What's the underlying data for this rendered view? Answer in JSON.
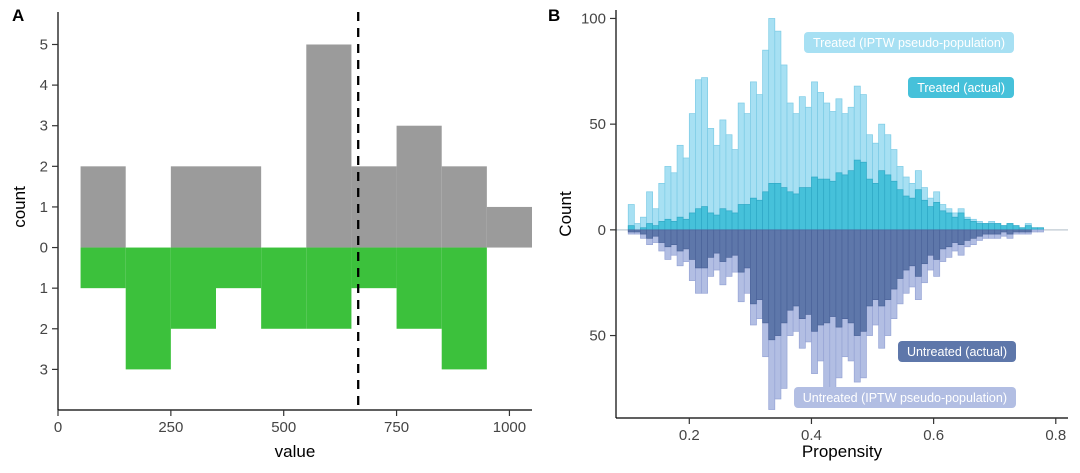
{
  "figure": {
    "background": "#ffffff",
    "panel_labels": [
      "A",
      "B"
    ]
  },
  "chart_data": [
    {
      "id": "A",
      "panel_label": "A",
      "type": "bar",
      "subtype": "mirror_histogram",
      "title": "",
      "xlabel": "value",
      "ylabel": "count",
      "xlim": [
        0,
        1050
      ],
      "ylim": [
        -4,
        5.8
      ],
      "x_tick_values": [
        0,
        250,
        500,
        750,
        1000
      ],
      "x_tick_labels": [
        "0",
        "250",
        "500",
        "750",
        "1000"
      ],
      "y_tick_values": [
        5,
        4,
        3,
        2,
        1,
        0,
        -1,
        -2,
        -3
      ],
      "y_tick_labels": [
        "5",
        "4",
        "3",
        "2",
        "1",
        "0",
        "1",
        "2",
        "3"
      ],
      "bin_start": 50,
      "bin_width": 100,
      "grid": false,
      "series": [
        {
          "name": "upper_histogram",
          "direction": "up",
          "fill": "#9b9b9b",
          "values": [
            2,
            0,
            2,
            2,
            0,
            5,
            2,
            3,
            2,
            1
          ]
        },
        {
          "name": "lower_histogram",
          "direction": "down",
          "fill": "#3cc13c",
          "values": [
            1,
            3,
            2,
            1,
            2,
            2,
            1,
            2,
            3,
            0
          ]
        }
      ],
      "vline": {
        "x": 665,
        "style": "dashed",
        "color": "#000000"
      }
    },
    {
      "id": "B",
      "panel_label": "B",
      "type": "bar",
      "subtype": "mirror_histogram",
      "title": "",
      "xlabel": "Propensity",
      "ylabel": "Count",
      "xlim": [
        0.08,
        0.82
      ],
      "ylim": [
        -89,
        104
      ],
      "x_tick_values": [
        0.2,
        0.4,
        0.6,
        0.8
      ],
      "x_tick_labels": [
        "0.2",
        "0.4",
        "0.6",
        "0.8"
      ],
      "y_tick_values": [
        100,
        50,
        0,
        -50
      ],
      "y_tick_labels": [
        "100",
        "50",
        "0",
        "50"
      ],
      "bin_start": 0.1,
      "bin_width": 0.01,
      "grid": false,
      "zero_line_color": "#c9d2da",
      "draw_order": [
        0,
        1,
        3,
        2
      ],
      "series": [
        {
          "name": "treated_iptw",
          "label": "Treated (IPTW pseudo-population)",
          "direction": "up",
          "fill": "#a7e0f3",
          "stroke": "#7ccbe5",
          "values": [
            12,
            3,
            6,
            18,
            10,
            22,
            30,
            27,
            40,
            34,
            55,
            71,
            72,
            48,
            40,
            52,
            45,
            38,
            60,
            55,
            70,
            64,
            85,
            100,
            94,
            78,
            60,
            55,
            63,
            58,
            70,
            65,
            60,
            56,
            62,
            55,
            58,
            68,
            64,
            45,
            41,
            50,
            45,
            38,
            30,
            25,
            22,
            28,
            20,
            15,
            18,
            12,
            10,
            8,
            10,
            6,
            5,
            4,
            3,
            4,
            3,
            2,
            3,
            2,
            1,
            3,
            1,
            1
          ]
        },
        {
          "name": "treated_actual",
          "label": "Treated (actual)",
          "direction": "up",
          "fill": "#46c1da",
          "stroke": "#2fa9c6",
          "values": [
            2,
            0,
            1,
            3,
            2,
            4,
            5,
            4,
            6,
            5,
            8,
            10,
            11,
            8,
            7,
            10,
            9,
            8,
            12,
            12,
            15,
            14,
            18,
            22,
            22,
            20,
            18,
            17,
            20,
            20,
            25,
            24,
            24,
            23,
            27,
            26,
            28,
            33,
            32,
            24,
            22,
            28,
            26,
            23,
            19,
            16,
            15,
            19,
            14,
            11,
            13,
            9,
            8,
            6,
            8,
            5,
            4,
            3,
            3,
            3,
            3,
            2,
            3,
            2,
            1,
            2,
            1,
            1
          ]
        },
        {
          "name": "untreated_actual",
          "label": "Untreated (actual)",
          "direction": "down",
          "fill": "#5e77aa",
          "stroke": "#4b639a",
          "values": [
            1,
            1,
            2,
            4,
            3,
            6,
            8,
            7,
            10,
            9,
            14,
            18,
            18,
            13,
            11,
            15,
            13,
            12,
            20,
            18,
            35,
            33,
            44,
            52,
            50,
            44,
            38,
            36,
            42,
            40,
            48,
            45,
            44,
            41,
            46,
            42,
            44,
            50,
            48,
            36,
            33,
            36,
            33,
            28,
            23,
            19,
            17,
            22,
            16,
            12,
            14,
            9,
            8,
            6,
            7,
            5,
            4,
            3,
            2,
            2,
            2,
            1,
            2,
            1,
            1,
            1,
            0,
            0
          ]
        },
        {
          "name": "untreated_iptw",
          "label": "Untreated (IPTW pseudo-population)",
          "direction": "down",
          "fill": "#b2bee3",
          "stroke": "#96a4d5",
          "values": [
            2,
            2,
            4,
            7,
            6,
            10,
            14,
            12,
            17,
            15,
            24,
            30,
            30,
            22,
            19,
            26,
            22,
            20,
            34,
            30,
            45,
            42,
            60,
            85,
            80,
            75,
            50,
            48,
            56,
            53,
            68,
            62,
            80,
            84,
            70,
            60,
            62,
            72,
            70,
            50,
            45,
            56,
            50,
            42,
            35,
            30,
            27,
            33,
            25,
            19,
            22,
            15,
            13,
            10,
            12,
            8,
            7,
            5,
            4,
            4,
            4,
            3,
            4,
            2,
            2,
            2,
            1,
            1
          ]
        }
      ]
    }
  ]
}
